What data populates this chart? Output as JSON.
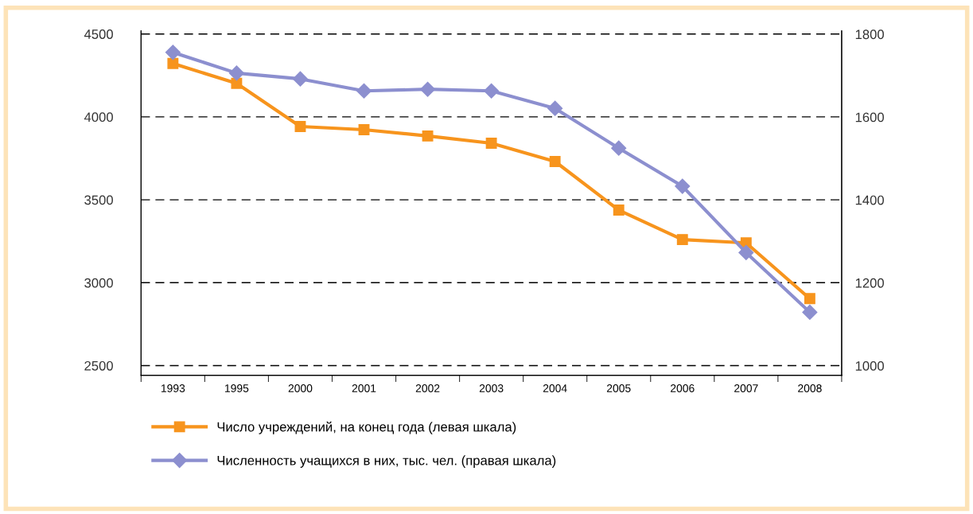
{
  "chart_data": {
    "type": "line",
    "categories": [
      "1993",
      "1995",
      "2000",
      "2001",
      "2002",
      "2003",
      "2004",
      "2005",
      "2006",
      "2007",
      "2008"
    ],
    "series": [
      {
        "name": "Число учреждений, на конец года (левая шкала)",
        "color": "#f7941d",
        "marker": "square",
        "values": [
          4322,
          4202,
          3942,
          3923,
          3885,
          3841,
          3731,
          3438,
          3260,
          3240,
          2904
        ]
      },
      {
        "name": "Численность учащихся в них, тыс. чел. (правая шкала)",
        "color": "#8c8fcf",
        "marker": "diamond",
        "axis": "y2",
        "values": [
          1756,
          1706,
          1692,
          1663,
          1667,
          1663,
          1621,
          1525,
          1433,
          1273,
          1129
        ]
      }
    ],
    "ylim": [
      2442,
      4519
    ],
    "yticks": [
      2500,
      3000,
      3500,
      4000,
      4500
    ],
    "y2lim": [
      977,
      1808
    ],
    "y2ticks": [
      1000,
      1200,
      1400,
      1600,
      1800
    ],
    "grid": "y",
    "legend": "bottom",
    "line_style": "solid"
  }
}
